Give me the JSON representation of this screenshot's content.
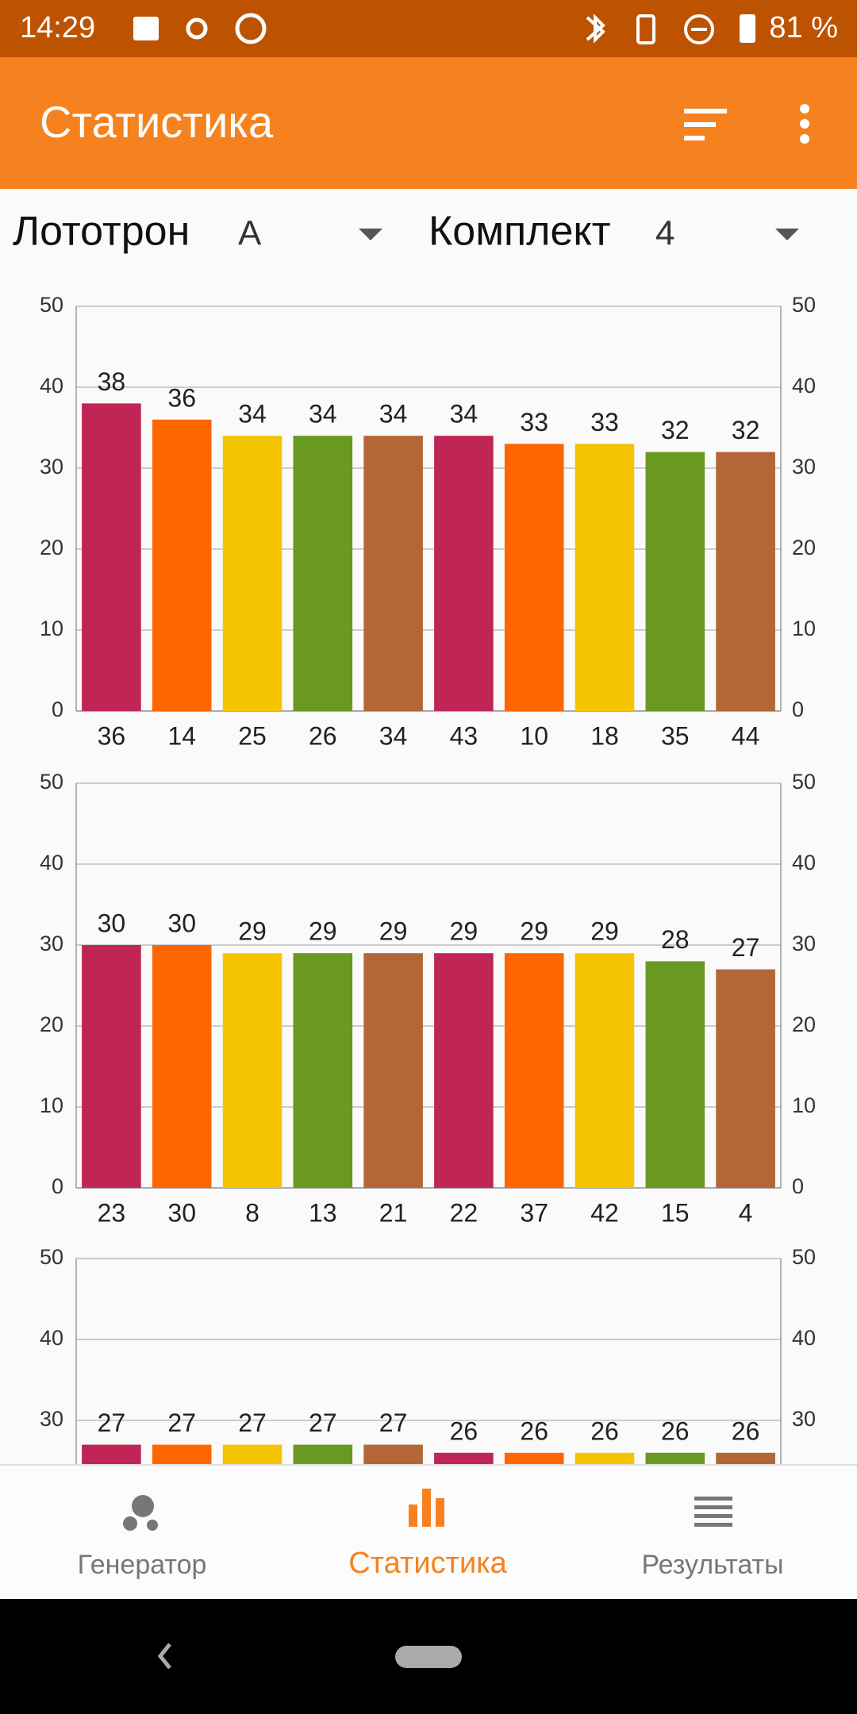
{
  "status_bar": {
    "time": "14:29",
    "battery": "81 %"
  },
  "app_bar": {
    "title": "Статистика"
  },
  "filters": [
    {
      "label": "Лототрон",
      "value": "A"
    },
    {
      "label": "Комплект",
      "value": "4"
    }
  ],
  "chart_data": [
    {
      "type": "bar",
      "categories": [
        "36",
        "14",
        "25",
        "26",
        "34",
        "43",
        "10",
        "18",
        "35",
        "44"
      ],
      "values": [
        38,
        36,
        34,
        34,
        34,
        34,
        33,
        33,
        32,
        32
      ],
      "colors": [
        "#c12555",
        "#ff6600",
        "#f5c400",
        "#6a9922",
        "#b36636"
      ],
      "ylim": [
        0,
        50
      ],
      "yticks": [
        0,
        10,
        20,
        30,
        40,
        50
      ],
      "y2lim": [
        0,
        50
      ],
      "y2ticks": [
        0,
        10,
        20,
        30,
        40,
        50
      ],
      "grid": true
    },
    {
      "type": "bar",
      "categories": [
        "23",
        "30",
        "8",
        "13",
        "21",
        "22",
        "37",
        "42",
        "15",
        "4"
      ],
      "values": [
        30,
        30,
        29,
        29,
        29,
        29,
        29,
        29,
        28,
        27
      ],
      "colors": [
        "#c12555",
        "#ff6600",
        "#f5c400",
        "#6a9922",
        "#b36636"
      ],
      "ylim": [
        0,
        50
      ],
      "yticks": [
        0,
        10,
        20,
        30,
        40,
        50
      ],
      "y2lim": [
        0,
        50
      ],
      "y2ticks": [
        0,
        10,
        20,
        30,
        40,
        50
      ],
      "grid": true
    },
    {
      "type": "bar",
      "categories": [
        null,
        null,
        null,
        null,
        null,
        null,
        null,
        null,
        null,
        null
      ],
      "values": [
        27,
        27,
        27,
        27,
        27,
        26,
        26,
        26,
        26,
        26
      ],
      "colors": [
        "#c12555",
        "#ff6600",
        "#f5c400",
        "#6a9922",
        "#b36636"
      ],
      "ylim": [
        0,
        50
      ],
      "yticks": [
        30,
        40,
        50
      ],
      "y2lim": [
        0,
        50
      ],
      "y2ticks": [
        30,
        40,
        50
      ],
      "grid": true
    }
  ],
  "bottom_nav": {
    "items": [
      {
        "label": "Генератор",
        "selected": false
      },
      {
        "label": "Статистика",
        "selected": true
      },
      {
        "label": "Результаты",
        "selected": false
      }
    ]
  }
}
